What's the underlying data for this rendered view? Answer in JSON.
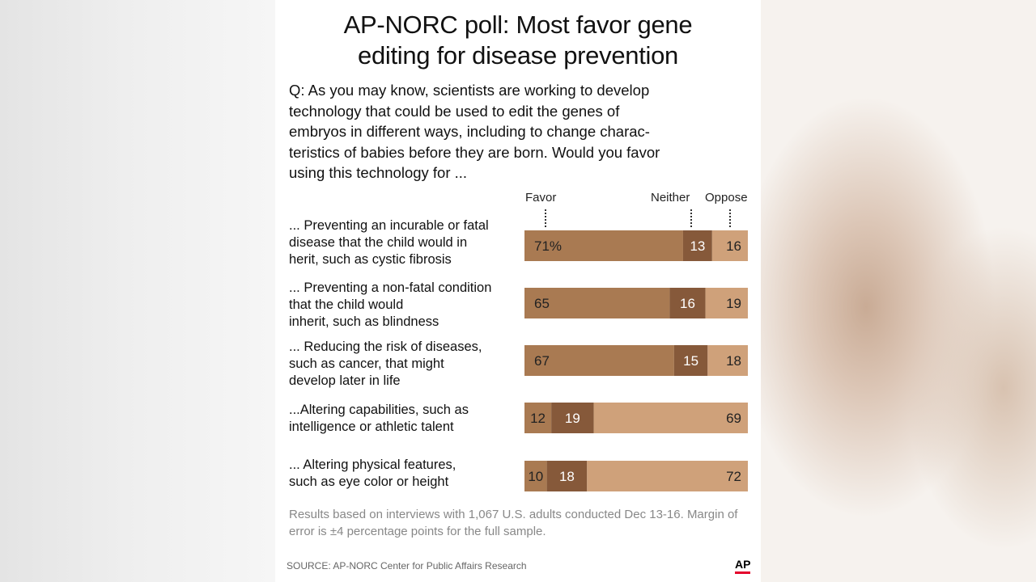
{
  "title_line1": "AP-NORC poll: Most favor gene",
  "title_line2": "editing for disease prevention",
  "question": "Q: As you may know, scientists are working to develop\ntechnology that could be used to edit the genes of\nembryos in different ways, including to change charac-\nteristics of babies before they are born. Would you favor\nusing this technology for ...",
  "note": "Results based on interviews with 1,067 U.S. adults conducted Dec 13-16. Margin of error is ±4 percentage points for the full sample.",
  "source": "SOURCE: AP-NORC Center for Public Affairs Research",
  "logo": "AP",
  "colors": {
    "favor": "#a97a52",
    "neither": "#86593a",
    "oppose": "#cfa17a",
    "text_light": "#ffffff",
    "text_dark": "#222222"
  },
  "chart_data": {
    "type": "bar",
    "orientation": "horizontal-stacked",
    "title": "AP-NORC poll: Most favor gene editing for disease prevention",
    "legend": [
      "Favor",
      "Neither",
      "Oppose"
    ],
    "categories": [
      "... Preventing an incurable or fatal\ndisease that the child would in\nherit, such as cystic fibrosis",
      "... Preventing a non-fatal condition\nthat the child would\ninherit, such as blindness",
      "... Reducing the risk of diseases,\nsuch as cancer, that might\ndevelop later in life",
      "...Altering capabilities, such as\nintelligence or athletic talent",
      "... Altering physical features,\nsuch as eye color or height"
    ],
    "series": [
      {
        "name": "Favor",
        "values": [
          71,
          65,
          67,
          12,
          10
        ]
      },
      {
        "name": "Neither",
        "values": [
          13,
          16,
          15,
          19,
          18
        ]
      },
      {
        "name": "Oppose",
        "values": [
          16,
          19,
          18,
          69,
          72
        ]
      }
    ],
    "value_labels": [
      [
        "71%",
        "13",
        "16"
      ],
      [
        "65",
        "16",
        "19"
      ],
      [
        "67",
        "15",
        "18"
      ],
      [
        "12",
        "19",
        "69"
      ],
      [
        "10",
        "18",
        "72"
      ]
    ],
    "xlim": [
      0,
      100
    ]
  }
}
